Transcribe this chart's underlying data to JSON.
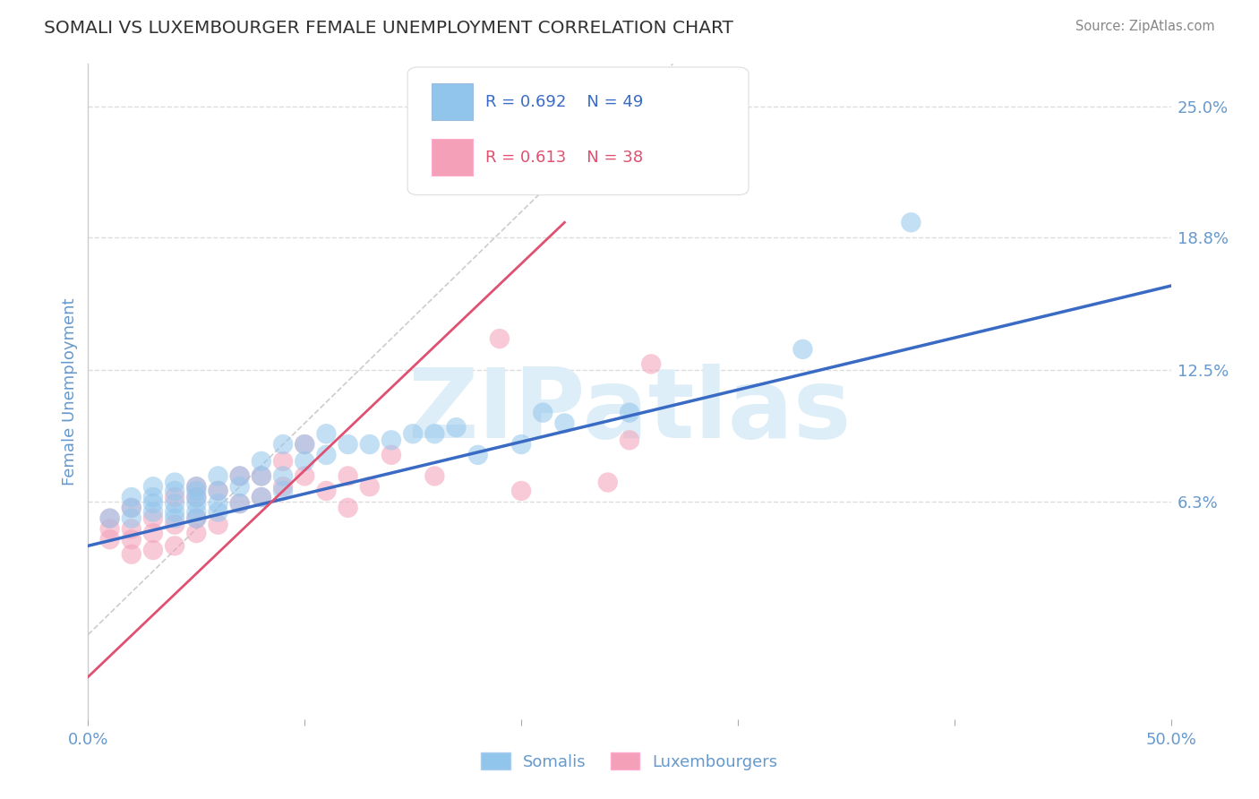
{
  "title": "SOMALI VS LUXEMBOURGER FEMALE UNEMPLOYMENT CORRELATION CHART",
  "source": "Source: ZipAtlas.com",
  "ylabel": "Female Unemployment",
  "xlim": [
    0.0,
    0.5
  ],
  "ylim": [
    -0.04,
    0.27
  ],
  "plot_ylim": [
    -0.04,
    0.27
  ],
  "xticks": [
    0.0,
    0.1,
    0.2,
    0.3,
    0.4,
    0.5
  ],
  "xtick_labels": [
    "0.0%",
    "",
    "",
    "",
    "",
    "50.0%"
  ],
  "ytick_labels": [
    "6.3%",
    "12.5%",
    "18.8%",
    "25.0%"
  ],
  "yticks": [
    0.063,
    0.125,
    0.188,
    0.25
  ],
  "somali_color": "#92C5EC",
  "lux_color": "#F4A0B8",
  "somali_line_color": "#3A6BC4",
  "lux_line_color": "#E05070",
  "ref_line_color": "#CCCCCC",
  "watermark_color": "#DDEEF8",
  "title_color": "#333333",
  "axis_color": "#6699CC",
  "tick_label_color": "#6699CC",
  "background_color": "#FFFFFF",
  "grid_color": "#DDDDDD",
  "somali_scatter_x": [
    0.01,
    0.02,
    0.02,
    0.02,
    0.03,
    0.03,
    0.03,
    0.03,
    0.04,
    0.04,
    0.04,
    0.04,
    0.04,
    0.05,
    0.05,
    0.05,
    0.05,
    0.05,
    0.05,
    0.06,
    0.06,
    0.06,
    0.06,
    0.07,
    0.07,
    0.07,
    0.08,
    0.08,
    0.08,
    0.09,
    0.09,
    0.09,
    0.1,
    0.1,
    0.11,
    0.11,
    0.12,
    0.13,
    0.14,
    0.15,
    0.16,
    0.17,
    0.18,
    0.2,
    0.21,
    0.22,
    0.25,
    0.33,
    0.38
  ],
  "somali_scatter_y": [
    0.055,
    0.06,
    0.065,
    0.055,
    0.058,
    0.062,
    0.065,
    0.07,
    0.055,
    0.058,
    0.062,
    0.068,
    0.072,
    0.055,
    0.058,
    0.062,
    0.065,
    0.068,
    0.07,
    0.058,
    0.062,
    0.068,
    0.075,
    0.062,
    0.07,
    0.075,
    0.065,
    0.075,
    0.082,
    0.068,
    0.075,
    0.09,
    0.082,
    0.09,
    0.085,
    0.095,
    0.09,
    0.09,
    0.092,
    0.095,
    0.095,
    0.098,
    0.085,
    0.09,
    0.105,
    0.1,
    0.105,
    0.135,
    0.195
  ],
  "lux_scatter_x": [
    0.01,
    0.01,
    0.01,
    0.02,
    0.02,
    0.02,
    0.02,
    0.03,
    0.03,
    0.03,
    0.04,
    0.04,
    0.04,
    0.05,
    0.05,
    0.05,
    0.05,
    0.06,
    0.06,
    0.07,
    0.07,
    0.08,
    0.08,
    0.09,
    0.09,
    0.1,
    0.1,
    0.11,
    0.12,
    0.12,
    0.13,
    0.14,
    0.16,
    0.19,
    0.2,
    0.24,
    0.25,
    0.26
  ],
  "lux_scatter_y": [
    0.045,
    0.055,
    0.05,
    0.038,
    0.045,
    0.05,
    0.06,
    0.04,
    0.048,
    0.055,
    0.042,
    0.052,
    0.065,
    0.048,
    0.055,
    0.065,
    0.07,
    0.052,
    0.068,
    0.062,
    0.075,
    0.065,
    0.075,
    0.07,
    0.082,
    0.075,
    0.09,
    0.068,
    0.06,
    0.075,
    0.07,
    0.085,
    0.075,
    0.14,
    0.068,
    0.072,
    0.092,
    0.128
  ],
  "somali_line_x0": 0.0,
  "somali_line_x1": 0.5,
  "somali_line_y0": 0.042,
  "somali_line_y1": 0.165,
  "lux_line_x0": 0.0,
  "lux_line_x1": 0.22,
  "lux_line_y0": -0.02,
  "lux_line_y1": 0.195,
  "ref_line_x0": 0.0,
  "ref_line_x1": 0.27,
  "ref_line_y0": 0.0,
  "ref_line_y1": 0.27
}
